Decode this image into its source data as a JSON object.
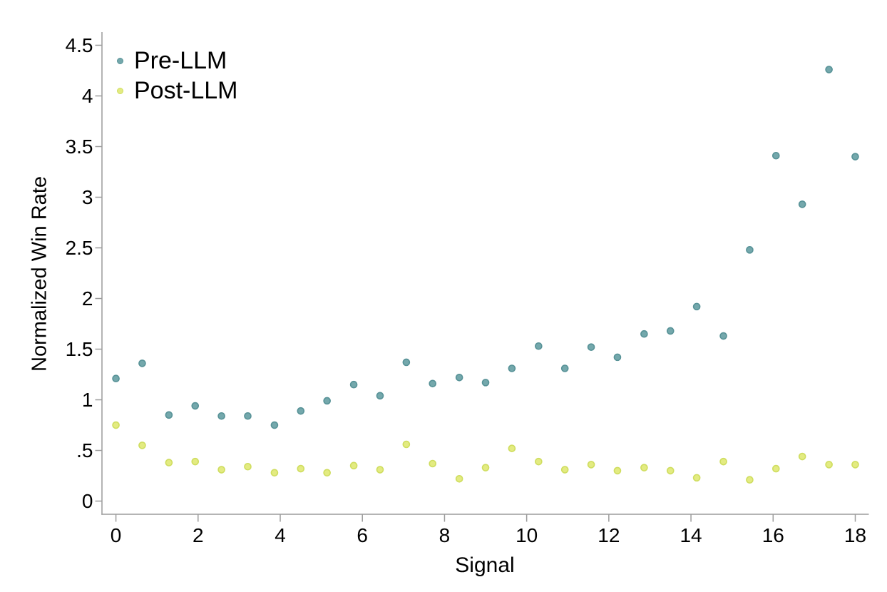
{
  "chart_data": {
    "type": "scatter",
    "title": "",
    "xlabel": "Signal",
    "ylabel": "Normalized Win Rate",
    "grid": false,
    "legend_position": "upper-left-inside",
    "xlim": [
      -0.34,
      18.33
    ],
    "ylim": [
      -0.13,
      4.63
    ],
    "x_ticks": {
      "values": [
        0,
        2,
        4,
        6,
        8,
        10,
        12,
        14,
        16,
        18
      ],
      "labels": [
        "0",
        "2",
        "4",
        "6",
        "8",
        "10",
        "12",
        "14",
        "16",
        "18"
      ]
    },
    "y_ticks": {
      "values": [
        0,
        0.5,
        1,
        1.5,
        2,
        2.5,
        3,
        3.5,
        4,
        4.5
      ],
      "labels": [
        "0",
        ".5",
        "1",
        "1.5",
        "2",
        "2.5",
        "3",
        "3.5",
        "4",
        "4.5"
      ]
    },
    "x": [
      0,
      0.64,
      1.29,
      1.93,
      2.57,
      3.21,
      3.86,
      4.5,
      5.14,
      5.79,
      6.43,
      7.07,
      7.71,
      8.36,
      9,
      9.64,
      10.29,
      10.93,
      11.57,
      12.21,
      12.86,
      13.5,
      14.14,
      14.79,
      15.43,
      16.07,
      16.71,
      17.36,
      18
    ],
    "series": [
      {
        "name": "Pre-LLM",
        "marker_color": "#74a8ac",
        "marker_edge_color": "#579297",
        "values": [
          1.21,
          1.36,
          0.85,
          0.94,
          0.84,
          0.84,
          0.75,
          0.89,
          0.99,
          1.15,
          1.04,
          1.37,
          1.16,
          1.22,
          1.17,
          1.31,
          1.53,
          1.31,
          1.52,
          1.42,
          1.65,
          1.68,
          1.92,
          1.63,
          2.48,
          3.41,
          2.93,
          4.26,
          3.4
        ]
      },
      {
        "name": "Post-LLM",
        "marker_color": "#e3eb81",
        "marker_edge_color": "#cfdd5f",
        "values": [
          0.75,
          0.55,
          0.38,
          0.39,
          0.31,
          0.34,
          0.28,
          0.32,
          0.28,
          0.35,
          0.31,
          0.56,
          0.37,
          0.22,
          0.33,
          0.52,
          0.39,
          0.31,
          0.36,
          0.3,
          0.33,
          0.3,
          0.23,
          0.39,
          0.21,
          0.32,
          0.44,
          0.36,
          0.36
        ]
      }
    ],
    "colors": {
      "axis": "#9c9c9c",
      "tick": "#9c9c9c",
      "tick_label": "#000000",
      "background": "#ffffff"
    }
  }
}
